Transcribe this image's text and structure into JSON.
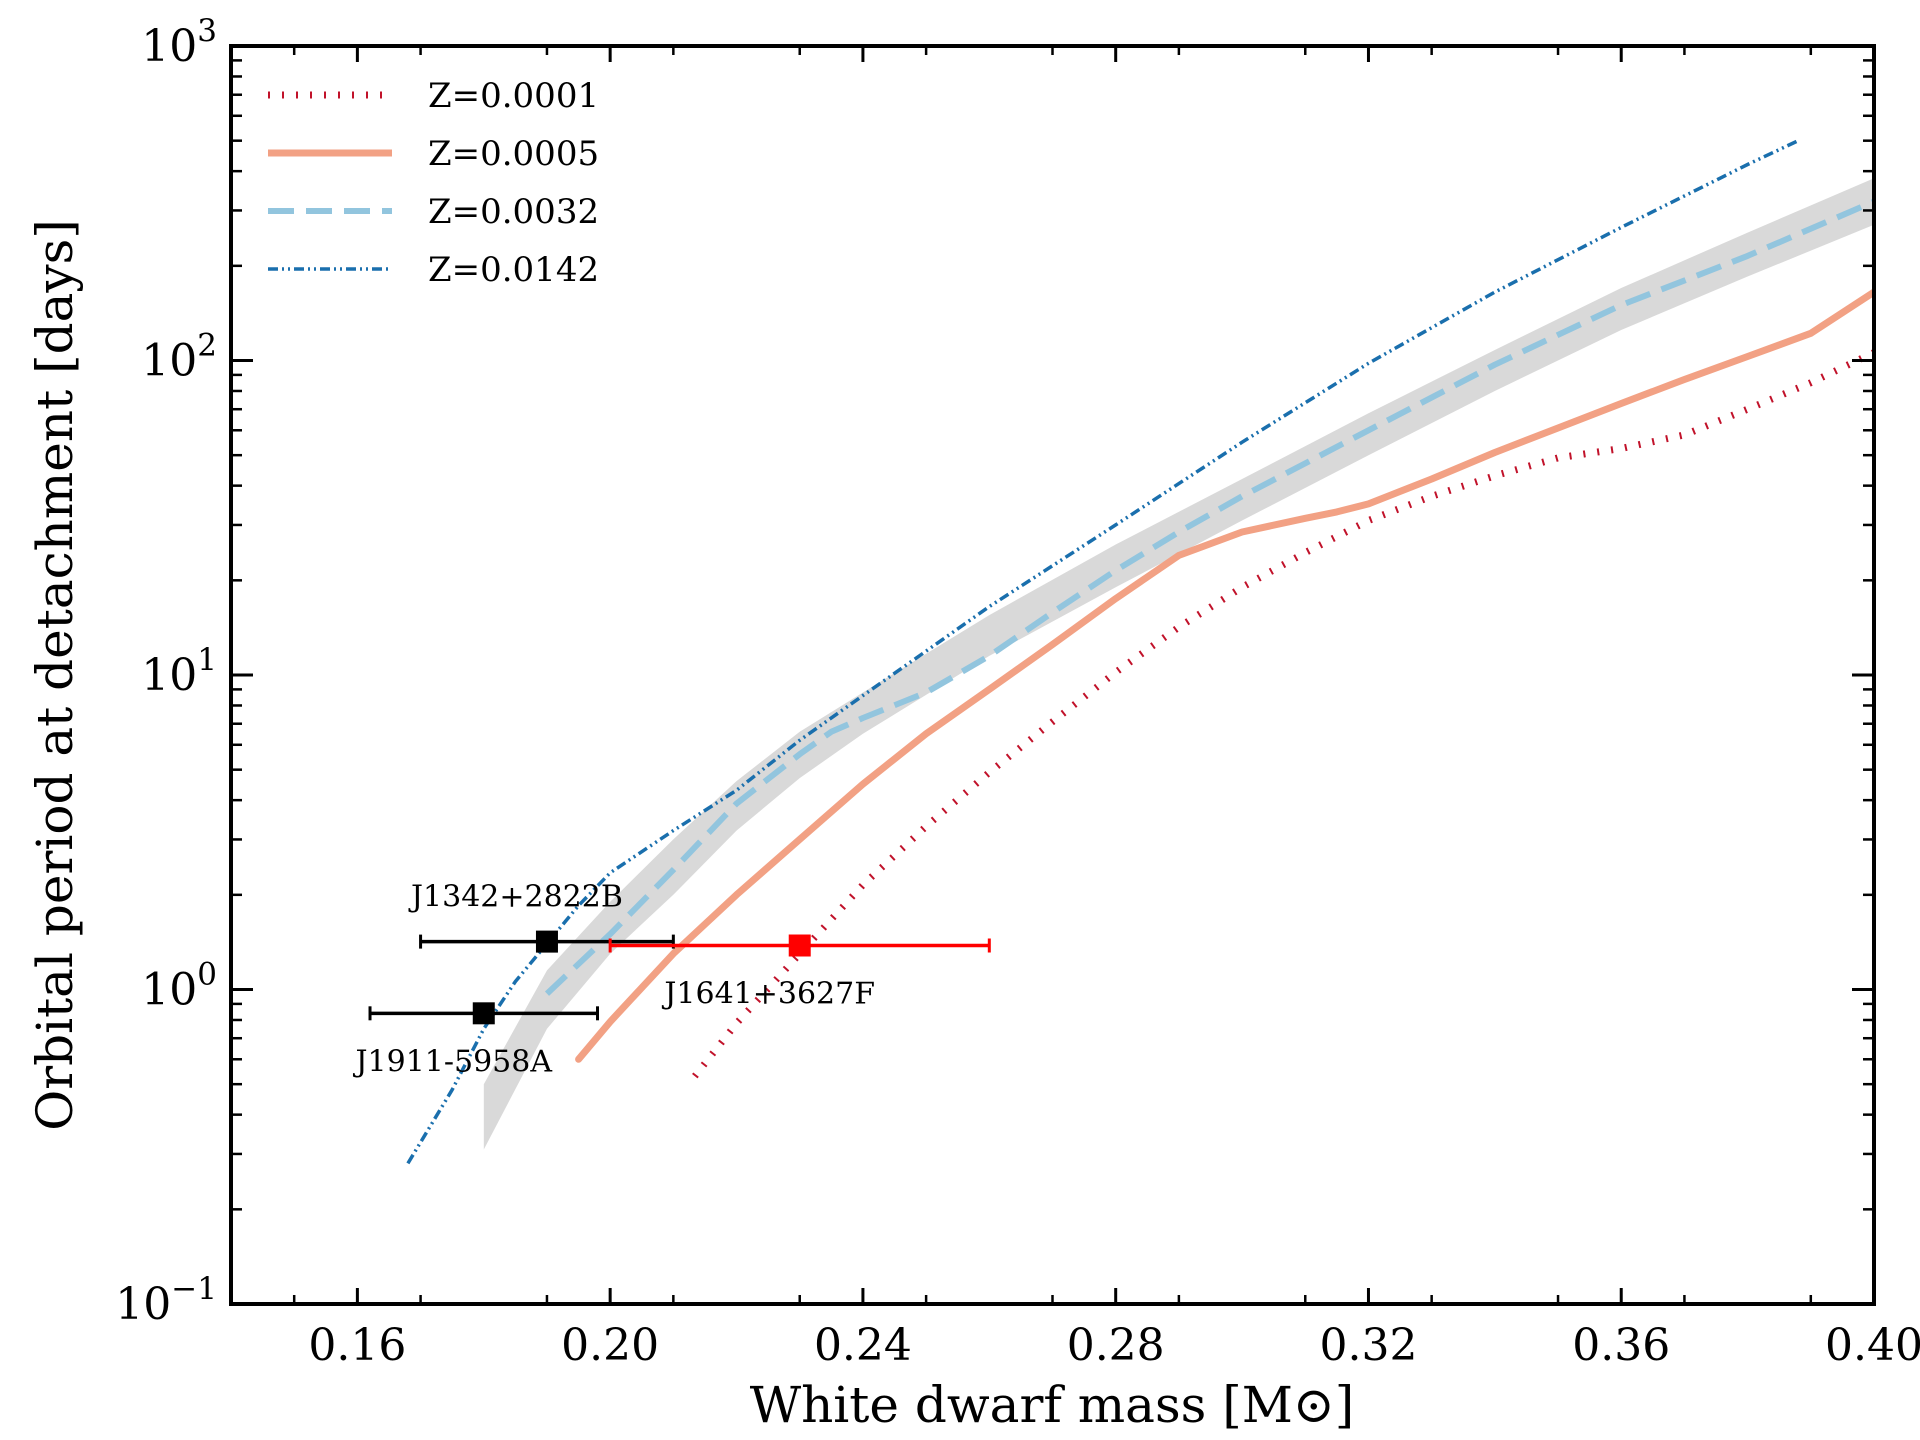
{
  "chart_data": {
    "type": "line",
    "xlabel": "White dwarf mass [M⊙]",
    "ylabel": "Orbital period at detachment [days]",
    "xlim": [
      0.14,
      0.4
    ],
    "ylim": [
      0.1,
      1000
    ],
    "yscale": "log",
    "xticks": [
      0.16,
      0.2,
      0.24,
      0.28,
      0.32,
      0.36,
      0.4
    ],
    "xtick_labels": [
      "0.16",
      "0.20",
      "0.24",
      "0.28",
      "0.32",
      "0.36",
      "0.40"
    ],
    "yticks": [
      {
        "value": 0.1,
        "base": "10",
        "exp": "−1"
      },
      {
        "value": 1,
        "base": "10",
        "exp": "0"
      },
      {
        "value": 10,
        "base": "10",
        "exp": "1"
      },
      {
        "value": 100,
        "base": "10",
        "exp": "2"
      },
      {
        "value": 1000,
        "base": "10",
        "exp": "3"
      }
    ],
    "legend_position": "top-left",
    "band": {
      "color": "#d9d9d9",
      "x": [
        0.18,
        0.19,
        0.2,
        0.21,
        0.22,
        0.23,
        0.24,
        0.26,
        0.28,
        0.3,
        0.32,
        0.34,
        0.36,
        0.38,
        0.4
      ],
      "lower": [
        0.31,
        0.75,
        1.3,
        2.0,
        3.2,
        4.7,
        6.5,
        11.5,
        19,
        31,
        50,
        80,
        125,
        185,
        270
      ],
      "upper": [
        0.5,
        1.15,
        1.9,
        3.0,
        4.6,
        6.6,
        8.8,
        15.5,
        26,
        42,
        68,
        108,
        170,
        255,
        380
      ]
    },
    "series": [
      {
        "name": "Z=0.0001",
        "color": "#c1122a",
        "style": "dotted",
        "x": [
          0.2134,
          0.22,
          0.23,
          0.24,
          0.25,
          0.26,
          0.27,
          0.28,
          0.29,
          0.3,
          0.31,
          0.32,
          0.33,
          0.34,
          0.35,
          0.36,
          0.37,
          0.38,
          0.39,
          0.4
        ],
        "y": [
          0.53,
          0.78,
          1.3,
          2.15,
          3.3,
          4.9,
          7.1,
          10.2,
          14.2,
          19,
          24.5,
          31,
          37,
          43,
          49,
          52.5,
          58,
          70,
          85,
          106
        ]
      },
      {
        "name": "Z=0.0005",
        "color": "#f2a184",
        "style": "solid",
        "x": [
          0.195,
          0.2,
          0.21,
          0.22,
          0.23,
          0.24,
          0.25,
          0.26,
          0.27,
          0.28,
          0.29,
          0.3,
          0.31,
          0.315,
          0.32,
          0.33,
          0.34,
          0.35,
          0.36,
          0.37,
          0.38,
          0.39,
          0.4
        ],
        "y": [
          0.6,
          0.79,
          1.3,
          2.0,
          3.0,
          4.5,
          6.5,
          9.0,
          12.5,
          17.5,
          24,
          28.5,
          31.5,
          33,
          35,
          42,
          51,
          61,
          73,
          87,
          103,
          122,
          165
        ]
      },
      {
        "name": "Z=0.0032",
        "color": "#92c5de",
        "style": "dashed",
        "x": [
          0.19,
          0.2,
          0.21,
          0.22,
          0.23,
          0.235,
          0.24,
          0.25,
          0.26,
          0.27,
          0.28,
          0.29,
          0.3,
          0.32,
          0.34,
          0.36,
          0.38,
          0.4
        ],
        "y": [
          0.97,
          1.5,
          2.4,
          3.9,
          5.6,
          6.6,
          7.3,
          8.8,
          11.5,
          15.8,
          21.5,
          28.5,
          37,
          60,
          97,
          150,
          215,
          320
        ]
      },
      {
        "name": "Z=0.0142",
        "color": "#1a6fad",
        "style": "dashdotdot",
        "x": [
          0.168,
          0.175,
          0.18,
          0.185,
          0.19,
          0.195,
          0.2,
          0.21,
          0.22,
          0.23,
          0.24,
          0.26,
          0.28,
          0.3,
          0.32,
          0.34,
          0.36,
          0.38,
          0.388
        ],
        "y": [
          0.28,
          0.48,
          0.75,
          1.06,
          1.4,
          1.85,
          2.35,
          3.2,
          4.3,
          6.2,
          8.6,
          16.5,
          30,
          55,
          98,
          165,
          265,
          420,
          500
        ]
      }
    ],
    "points": [
      {
        "label": "J1342+2822B",
        "x": 0.19,
        "y": 1.42,
        "xerr_low": 0.17,
        "xerr_high": 0.21,
        "color": "#000000",
        "label_pos": "above"
      },
      {
        "label": "J1911-5958A",
        "x": 0.18,
        "y": 0.84,
        "xerr_low": 0.162,
        "xerr_high": 0.198,
        "color": "#000000",
        "label_pos": "below"
      },
      {
        "label": "J1641+3627F",
        "x": 0.23,
        "y": 1.38,
        "xerr_low": 0.2,
        "xerr_high": 0.26,
        "color": "#ff0000",
        "label_pos": "below"
      }
    ]
  }
}
